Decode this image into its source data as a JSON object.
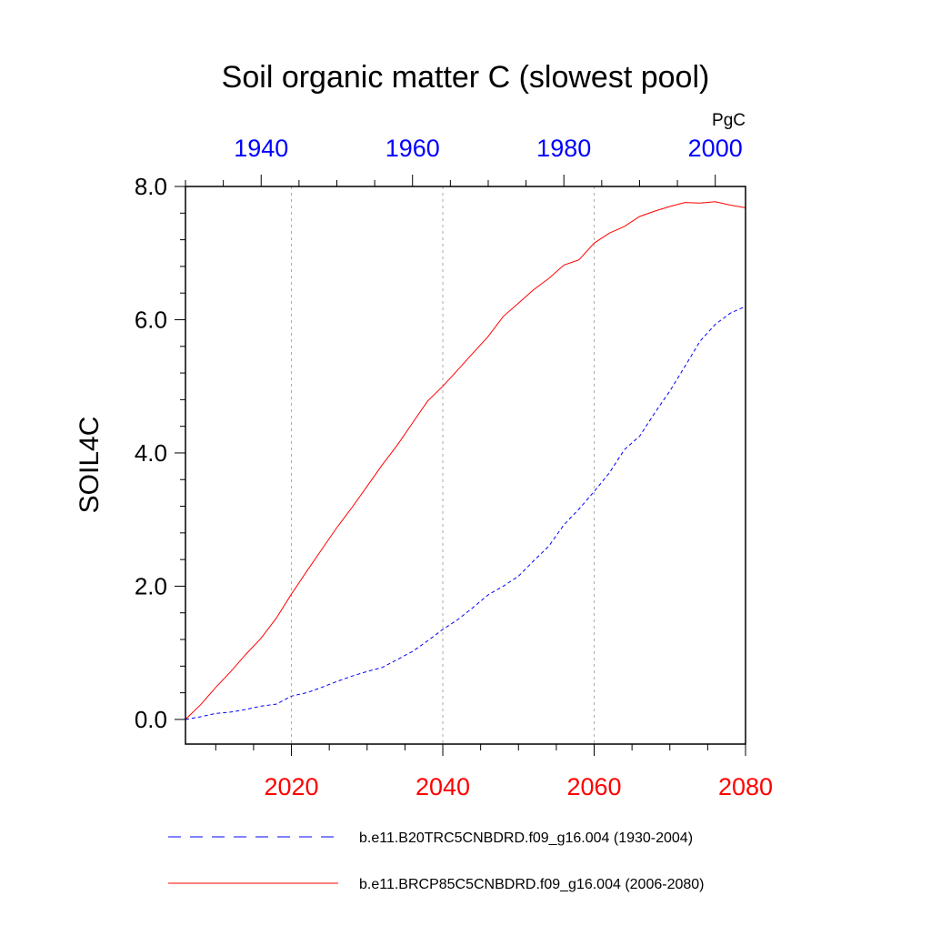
{
  "chart_data": {
    "type": "line",
    "title": "Soil organic matter C (slowest pool)",
    "ylabel": "SOIL4C",
    "units": "PgC",
    "ylim": [
      -0.37,
      8.0
    ],
    "yticks": [
      0,
      2,
      4,
      6,
      8
    ],
    "ytick_labels": [
      "0.0",
      "2.0",
      "4.0",
      "6.0",
      "8.0"
    ],
    "bottom_axis": {
      "xlim": [
        2006,
        2080
      ],
      "ticks": [
        2020,
        2040,
        2060,
        2080
      ],
      "tick_labels": [
        "2020",
        "2040",
        "2060",
        "2080"
      ],
      "color": "#ff0000"
    },
    "top_axis": {
      "xlim": [
        1930,
        2004
      ],
      "ticks": [
        1940,
        1960,
        1980,
        2000
      ],
      "tick_labels": [
        "1940",
        "1960",
        "1980",
        "2000"
      ],
      "color": "#0000ff"
    },
    "gridlines_x": [
      2020,
      2040,
      2060
    ],
    "series": [
      {
        "name": "b.e11.B20TRC5CNBDRD.f09_g16.004 (1930-2004)",
        "color": "#0000ff",
        "style": "dashed",
        "axis": "top",
        "x": [
          1930,
          1932,
          1934,
          1936,
          1938,
          1940,
          1942,
          1944,
          1946,
          1948,
          1950,
          1952,
          1954,
          1956,
          1958,
          1960,
          1962,
          1964,
          1966,
          1968,
          1970,
          1972,
          1974,
          1976,
          1978,
          1980,
          1982,
          1984,
          1986,
          1988,
          1990,
          1992,
          1994,
          1996,
          1998,
          2000,
          2002,
          2004
        ],
        "values": [
          0.0,
          0.04,
          0.09,
          0.11,
          0.15,
          0.2,
          0.23,
          0.35,
          0.4,
          0.48,
          0.57,
          0.65,
          0.72,
          0.78,
          0.9,
          1.02,
          1.18,
          1.35,
          1.5,
          1.68,
          1.87,
          2.0,
          2.15,
          2.38,
          2.6,
          2.92,
          3.16,
          3.42,
          3.7,
          4.05,
          4.25,
          4.6,
          4.93,
          5.3,
          5.68,
          5.93,
          6.1,
          6.2
        ]
      },
      {
        "name": "b.e11.BRCP85C5CNBDRD.f09_g16.004 (2006-2080)",
        "color": "#ff0000",
        "style": "solid",
        "axis": "bottom",
        "x": [
          2006,
          2008,
          2010,
          2012,
          2014,
          2016,
          2018,
          2020,
          2022,
          2024,
          2026,
          2028,
          2030,
          2032,
          2034,
          2036,
          2038,
          2040,
          2042,
          2044,
          2046,
          2048,
          2050,
          2052,
          2054,
          2056,
          2058,
          2060,
          2062,
          2064,
          2066,
          2068,
          2070,
          2072,
          2074,
          2076,
          2078,
          2080
        ],
        "values": [
          0.0,
          0.22,
          0.48,
          0.72,
          0.98,
          1.22,
          1.52,
          1.88,
          2.22,
          2.55,
          2.88,
          3.18,
          3.5,
          3.82,
          4.12,
          4.45,
          4.78,
          5.0,
          5.25,
          5.5,
          5.75,
          6.05,
          6.25,
          6.45,
          6.62,
          6.82,
          6.9,
          7.15,
          7.3,
          7.4,
          7.55,
          7.63,
          7.7,
          7.76,
          7.75,
          7.77,
          7.72,
          7.68
        ]
      }
    ],
    "legend_position": "bottom"
  }
}
